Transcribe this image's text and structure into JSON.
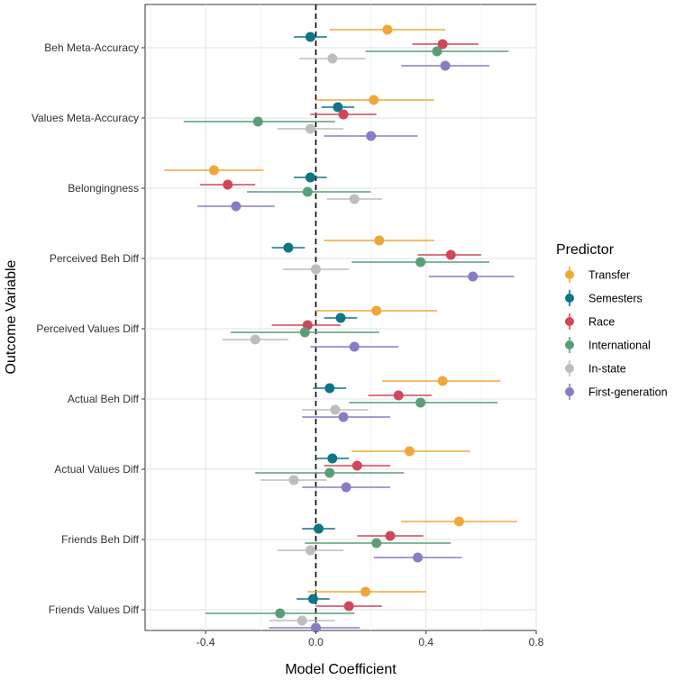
{
  "chart_data": {
    "type": "scatter",
    "subtype": "coefficient-plot",
    "title": "",
    "xlabel": "Model Coefficient",
    "ylabel": "Outcome Variable",
    "xlim": [
      -0.62,
      0.8
    ],
    "xticks": [
      -0.4,
      0.0,
      0.4,
      0.8
    ],
    "xtick_labels": [
      "-0.4",
      "0.0",
      "0.4",
      "0.8"
    ],
    "reference_line": 0,
    "grid": true,
    "legend": {
      "title": "Predictor",
      "position": "right"
    },
    "categories": [
      "Beh Meta-Accuracy",
      "Values Meta-Accuracy",
      "Belongingness",
      "Perceived Beh Diff",
      "Perceived Values Diff",
      "Actual Beh Diff",
      "Actual Values Diff",
      "Friends Beh Diff",
      "Friends Values Diff"
    ],
    "series": [
      {
        "name": "Transfer",
        "color": "#F0A73A",
        "estimates": [
          0.26,
          0.21,
          -0.37,
          0.23,
          0.22,
          0.46,
          0.34,
          0.52,
          0.18
        ],
        "ci_low": [
          0.05,
          0.0,
          -0.55,
          0.03,
          0.0,
          0.24,
          0.13,
          0.31,
          -0.03
        ],
        "ci_high": [
          0.47,
          0.43,
          -0.19,
          0.43,
          0.44,
          0.67,
          0.56,
          0.73,
          0.4
        ]
      },
      {
        "name": "Semesters",
        "color": "#0E7584",
        "estimates": [
          -0.02,
          0.08,
          -0.02,
          -0.1,
          0.09,
          0.05,
          0.06,
          0.01,
          -0.01
        ],
        "ci_low": [
          -0.08,
          0.02,
          -0.08,
          -0.16,
          0.03,
          -0.01,
          0.0,
          -0.05,
          -0.07
        ],
        "ci_high": [
          0.04,
          0.14,
          0.04,
          -0.04,
          0.15,
          0.11,
          0.12,
          0.07,
          0.05
        ]
      },
      {
        "name": "Race",
        "color": "#D0475A",
        "estimates": [
          0.46,
          0.1,
          -0.32,
          0.49,
          -0.03,
          0.3,
          0.15,
          0.27,
          0.12
        ],
        "ci_low": [
          0.35,
          -0.02,
          -0.42,
          0.37,
          -0.16,
          0.19,
          0.03,
          0.15,
          0.0
        ],
        "ci_high": [
          0.59,
          0.22,
          -0.22,
          0.6,
          0.09,
          0.42,
          0.27,
          0.39,
          0.24
        ]
      },
      {
        "name": "International",
        "color": "#5A9E79",
        "estimates": [
          0.44,
          -0.21,
          -0.03,
          0.38,
          -0.04,
          0.38,
          0.05,
          0.22,
          -0.13
        ],
        "ci_low": [
          0.18,
          -0.48,
          -0.25,
          0.13,
          -0.31,
          0.12,
          -0.22,
          -0.04,
          -0.4
        ],
        "ci_high": [
          0.7,
          0.07,
          0.2,
          0.63,
          0.23,
          0.66,
          0.32,
          0.49,
          0.14
        ]
      },
      {
        "name": "In-state",
        "color": "#BDBDBD",
        "estimates": [
          0.06,
          -0.02,
          0.14,
          0.0,
          -0.22,
          0.07,
          -0.08,
          -0.02,
          -0.05
        ],
        "ci_low": [
          -0.06,
          -0.14,
          0.04,
          -0.12,
          -0.34,
          -0.05,
          -0.2,
          -0.14,
          -0.17
        ],
        "ci_high": [
          0.18,
          0.1,
          0.24,
          0.12,
          -0.1,
          0.19,
          0.04,
          0.1,
          0.07
        ]
      },
      {
        "name": "First-generation",
        "color": "#8C7BC4",
        "estimates": [
          0.47,
          0.2,
          -0.29,
          0.57,
          0.14,
          0.1,
          0.11,
          0.37,
          0.0
        ],
        "ci_low": [
          0.31,
          0.03,
          -0.43,
          0.41,
          -0.02,
          -0.05,
          -0.05,
          0.21,
          -0.17
        ],
        "ci_high": [
          0.63,
          0.37,
          -0.15,
          0.72,
          0.3,
          0.27,
          0.27,
          0.53,
          0.16
        ]
      }
    ]
  }
}
